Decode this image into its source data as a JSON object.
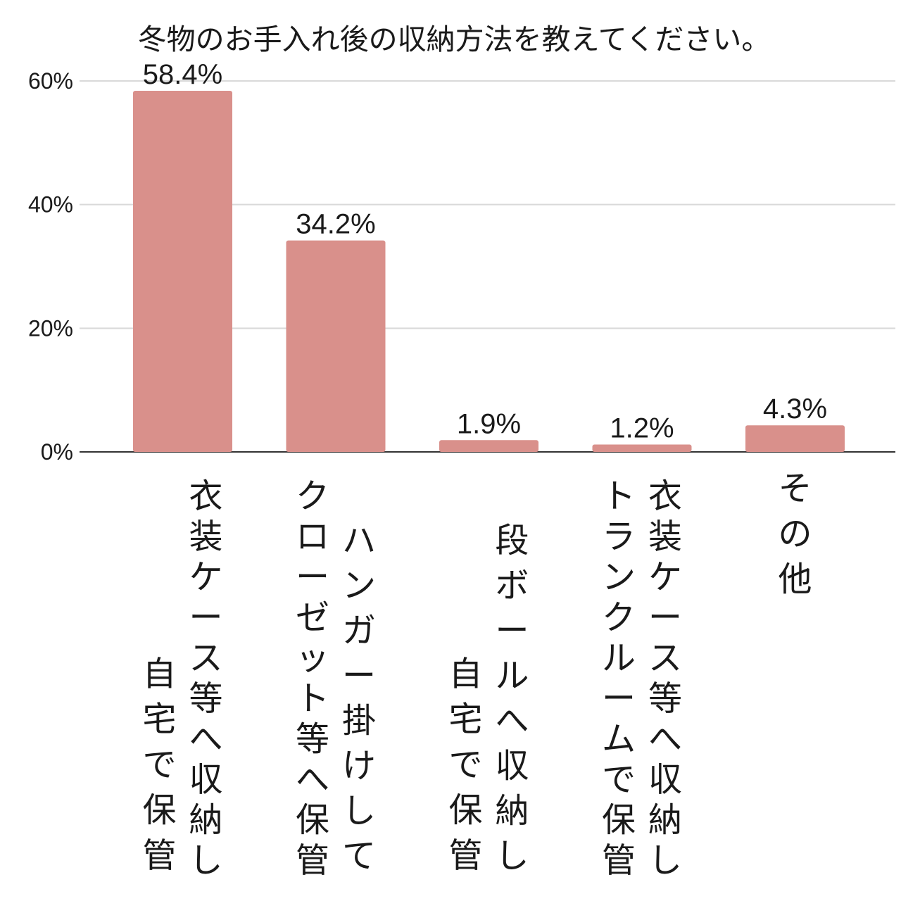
{
  "chart_data": {
    "type": "bar",
    "title": "冬物のお手入れ後の収納方法を教えてください。",
    "categories": [
      [
        "衣装ケース等へ収納し",
        "自宅で保管"
      ],
      [
        "ハンガー掛けして",
        "クローゼット等へ保管"
      ],
      [
        "段ボールへ収納し",
        "自宅で保管"
      ],
      [
        "衣装ケース等へ収納し",
        "トランクルームで保管"
      ],
      [
        "その他"
      ]
    ],
    "values": [
      58.4,
      34.2,
      1.9,
      1.2,
      4.3
    ],
    "value_labels": [
      "58.4%",
      "34.2%",
      "1.9%",
      "1.2%",
      "4.3%"
    ],
    "yticks": [
      0,
      20,
      40,
      60
    ],
    "ytick_labels": [
      "0%",
      "20%",
      "40%",
      "60%"
    ],
    "ylim": [
      0,
      60
    ],
    "grid": true,
    "colors": {
      "bar": "#d9908b",
      "grid": "#d9d9d9",
      "axis": "#333333"
    }
  }
}
